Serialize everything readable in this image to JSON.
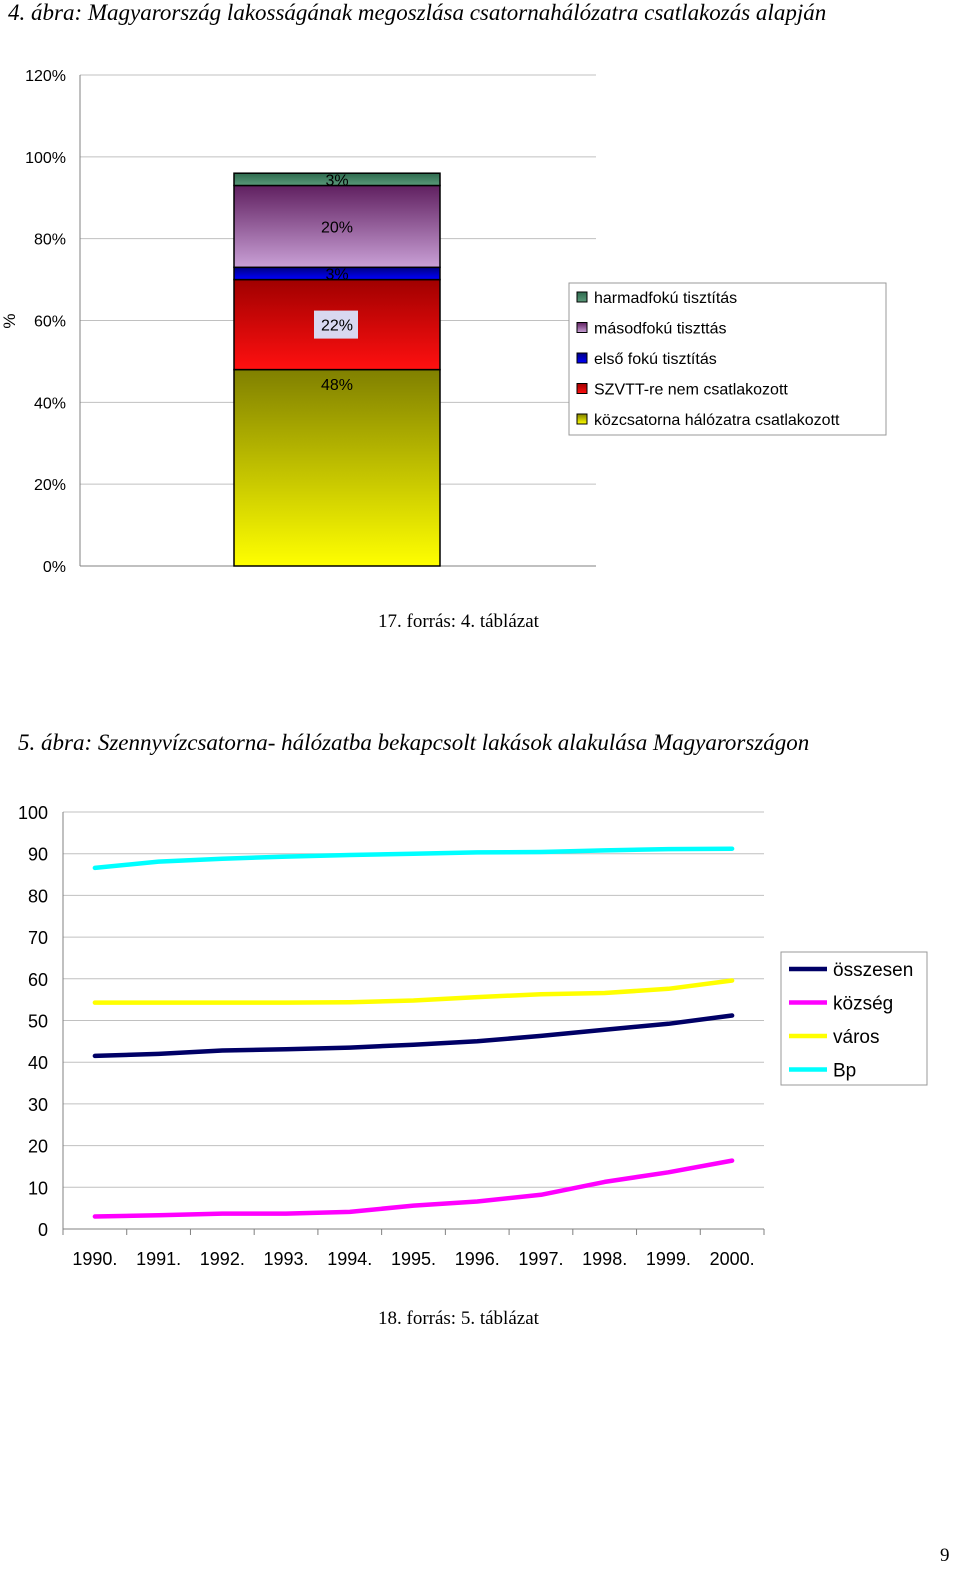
{
  "page_number": "9",
  "chart_data": [
    {
      "type": "bar",
      "stacked": true,
      "title": "4. ábra: Magyarország lakosságának megoszlása csatornahálózatra csatlakozás alapján",
      "ylabel": "%",
      "ylim": [
        0,
        120
      ],
      "yticks": [
        "0%",
        "20%",
        "40%",
        "60%",
        "80%",
        "100%",
        "120%"
      ],
      "grid": true,
      "legend_position": "right",
      "source": "17. forrás: 4. táblázat",
      "series": [
        {
          "name": "közcsatorna hálózatra csatlakozott",
          "value": 48,
          "label": "48%",
          "color": "#e0e000"
        },
        {
          "name": "SZVTT-re nem csatlakozott",
          "value": 22,
          "label": "22%",
          "color": "#e00000"
        },
        {
          "name": "első fokú tisztítás",
          "value": 3,
          "label": "3%",
          "color": "#0000cc"
        },
        {
          "name": "másodfokú tiszttás",
          "value": 20,
          "label": "20%",
          "color": "#9966aa"
        },
        {
          "name": "harmadfokú tisztítás",
          "value": 3,
          "label": "3%",
          "color": "#3a7a5a"
        }
      ]
    },
    {
      "type": "line",
      "title": "5. ábra: Szennyvízcsatorna- hálózatba bekapcsolt lakások alakulása Magyarországon",
      "categories": [
        "1990.",
        "1991.",
        "1992.",
        "1993.",
        "1994.",
        "1995.",
        "1996.",
        "1997.",
        "1998.",
        "1999.",
        "2000."
      ],
      "ylim": [
        0,
        100
      ],
      "yticks": [
        "0",
        "10",
        "20",
        "30",
        "40",
        "50",
        "60",
        "70",
        "80",
        "90",
        "100"
      ],
      "grid": true,
      "legend_position": "right",
      "source": "18. forrás: 5. táblázat",
      "series": [
        {
          "name": "összesen",
          "color": "#000066",
          "values": [
            41.5,
            42,
            42.8,
            43.1,
            43.5,
            44.2,
            45,
            46.3,
            47.8,
            49.2,
            51.2
          ]
        },
        {
          "name": "község",
          "color": "#ff00ff",
          "values": [
            3,
            3.3,
            3.7,
            3.7,
            4.1,
            5.6,
            6.6,
            8.2,
            11.3,
            13.6,
            16.4
          ]
        },
        {
          "name": "város",
          "color": "#ffff00",
          "values": [
            54.3,
            54.3,
            54.3,
            54.3,
            54.4,
            54.8,
            55.6,
            56.3,
            56.6,
            57.6,
            59.6
          ]
        },
        {
          "name": "Bp",
          "color": "#00ffff",
          "values": [
            86.6,
            88.1,
            88.8,
            89.3,
            89.7,
            90,
            90.3,
            90.4,
            90.8,
            91.1,
            91.2
          ]
        }
      ]
    }
  ]
}
